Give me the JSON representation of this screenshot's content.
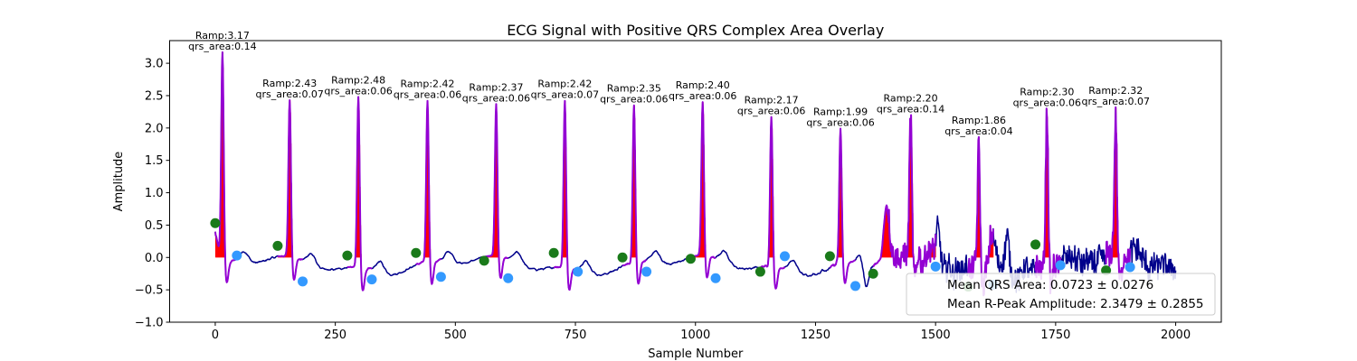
{
  "chart_data": {
    "type": "line",
    "title": "ECG Signal with Positive QRS Complex Area Overlay",
    "xlabel": "Sample Number",
    "ylabel": "Amplitude",
    "xlim": [
      -95,
      2095
    ],
    "ylim": [
      -1.0,
      3.35
    ],
    "xticks": [
      0,
      250,
      500,
      750,
      1000,
      1250,
      1500,
      1750,
      2000
    ],
    "xtick_labels": [
      "0",
      "250",
      "500",
      "750",
      "1000",
      "1250",
      "1500",
      "1750",
      "2000"
    ],
    "yticks": [
      -1.0,
      -0.5,
      0.0,
      0.5,
      1.0,
      1.5,
      2.0,
      2.5,
      3.0
    ],
    "ytick_labels": [
      "−1.0",
      "−0.5",
      "0.0",
      "0.5",
      "1.0",
      "1.5",
      "2.0",
      "2.5",
      "3.0"
    ],
    "grid": false,
    "legend_position": "lower-right",
    "colors": {
      "signal": "#00008b",
      "qrs_segment": "#9400d3",
      "qrs_area": "#ff0000",
      "onset_marker": "#1a7a1a",
      "offset_marker": "#3399ff"
    },
    "beats": [
      {
        "r": 15,
        "ramp": 3.17,
        "area": 0.14,
        "ramp_label": "Ramp:3.17",
        "area_label": "qrs_area:0.14",
        "onset": [
          0,
          0.53
        ],
        "offset": [
          45,
          0.03
        ]
      },
      {
        "r": 155,
        "ramp": 2.43,
        "area": 0.07,
        "ramp_label": "Ramp:2.43",
        "area_label": "qrs_area:0.07",
        "onset": [
          130,
          0.18
        ],
        "offset": [
          182,
          -0.37
        ]
      },
      {
        "r": 298,
        "ramp": 2.48,
        "area": 0.06,
        "ramp_label": "Ramp:2.48",
        "area_label": "qrs_area:0.06",
        "onset": [
          275,
          0.03
        ],
        "offset": [
          326,
          -0.34
        ]
      },
      {
        "r": 442,
        "ramp": 2.42,
        "area": 0.06,
        "ramp_label": "Ramp:2.42",
        "area_label": "qrs_area:0.06",
        "onset": [
          418,
          0.07
        ],
        "offset": [
          470,
          -0.3
        ]
      },
      {
        "r": 585,
        "ramp": 2.37,
        "area": 0.06,
        "ramp_label": "Ramp:2.37",
        "area_label": "qrs_area:0.06",
        "onset": [
          560,
          -0.05
        ],
        "offset": [
          610,
          -0.32
        ]
      },
      {
        "r": 728,
        "ramp": 2.42,
        "area": 0.07,
        "ramp_label": "Ramp:2.42",
        "area_label": "qrs_area:0.07",
        "onset": [
          705,
          0.07
        ],
        "offset": [
          755,
          -0.22
        ]
      },
      {
        "r": 872,
        "ramp": 2.35,
        "area": 0.06,
        "ramp_label": "Ramp:2.35",
        "area_label": "qrs_area:0.06",
        "onset": [
          848,
          0.0
        ],
        "offset": [
          898,
          -0.22
        ]
      },
      {
        "r": 1015,
        "ramp": 2.4,
        "area": 0.06,
        "ramp_label": "Ramp:2.40",
        "area_label": "qrs_area:0.06",
        "onset": [
          990,
          -0.02
        ],
        "offset": [
          1042,
          -0.32
        ]
      },
      {
        "r": 1158,
        "ramp": 2.17,
        "area": 0.06,
        "ramp_label": "Ramp:2.17",
        "area_label": "qrs_area:0.06",
        "onset": [
          1135,
          -0.22
        ],
        "offset": [
          1186,
          0.02
        ]
      },
      {
        "r": 1302,
        "ramp": 1.99,
        "area": 0.06,
        "ramp_label": "Ramp:1.99",
        "area_label": "qrs_area:0.06",
        "onset": [
          1280,
          0.02
        ],
        "offset": [
          1333,
          -0.44
        ]
      },
      {
        "r": 1448,
        "ramp": 2.2,
        "area": 0.14,
        "ramp_label": "Ramp:2.20",
        "area_label": "qrs_area:0.14",
        "onset": [
          1370,
          -0.25
        ],
        "offset": [
          1500,
          -0.14
        ]
      },
      {
        "r": 1590,
        "ramp": 1.86,
        "area": 0.04,
        "ramp_label": "Ramp:1.86",
        "area_label": "qrs_area:0.04",
        "onset": [
          1568,
          -0.45
        ],
        "offset": [
          1620,
          -0.42
        ]
      },
      {
        "r": 1732,
        "ramp": 2.3,
        "area": 0.06,
        "ramp_label": "Ramp:2.30",
        "area_label": "qrs_area:0.06",
        "onset": [
          1708,
          0.2
        ],
        "offset": [
          1760,
          -0.12
        ]
      },
      {
        "r": 1875,
        "ramp": 2.32,
        "area": 0.07,
        "ramp_label": "Ramp:2.32",
        "area_label": "qrs_area:0.07",
        "onset": [
          1855,
          -0.2
        ],
        "offset": [
          1905,
          -0.15
        ]
      }
    ],
    "summary": {
      "mean_qrs_area": "Mean QRS Area: 0.0723 ± 0.0276",
      "mean_r_peak": "Mean R-Peak Amplitude: 2.3479 ± 0.2855"
    }
  }
}
